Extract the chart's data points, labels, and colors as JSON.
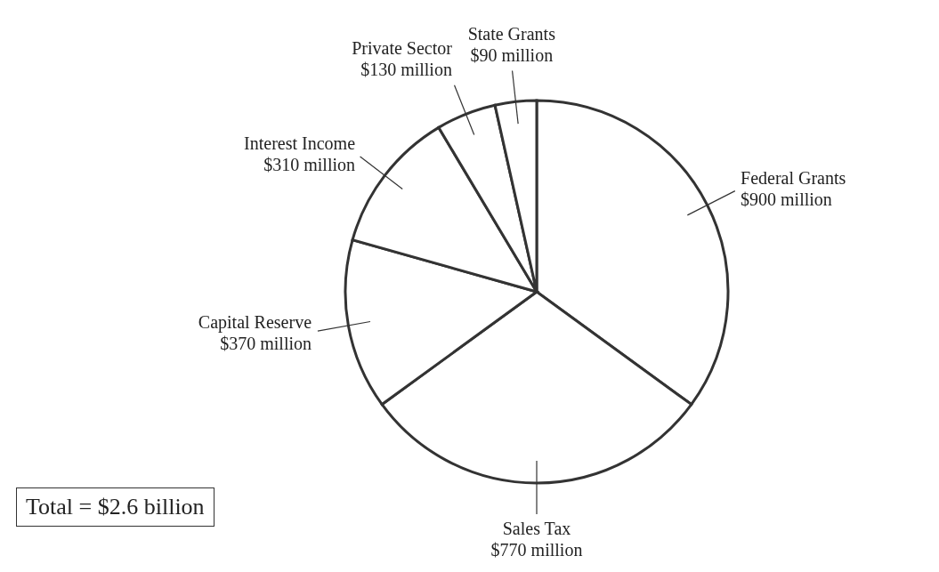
{
  "chart_data": {
    "type": "pie",
    "categories": [
      "Federal Grants",
      "Sales Tax",
      "Capital Reserve",
      "Interest Income",
      "Private Sector",
      "State Grants"
    ],
    "values": [
      900,
      770,
      370,
      310,
      130,
      90
    ],
    "value_labels": [
      "$900 million",
      "$770 million",
      "$370 million",
      "$310 million",
      "$130 million",
      "$90 million"
    ],
    "colors": [
      "#ffffff",
      "#ffffff",
      "#ffffff",
      "#ffffff",
      "#ffffff",
      "#ffffff"
    ],
    "annotations": [
      "Total = $2.6 billion"
    ],
    "legend": false
  }
}
